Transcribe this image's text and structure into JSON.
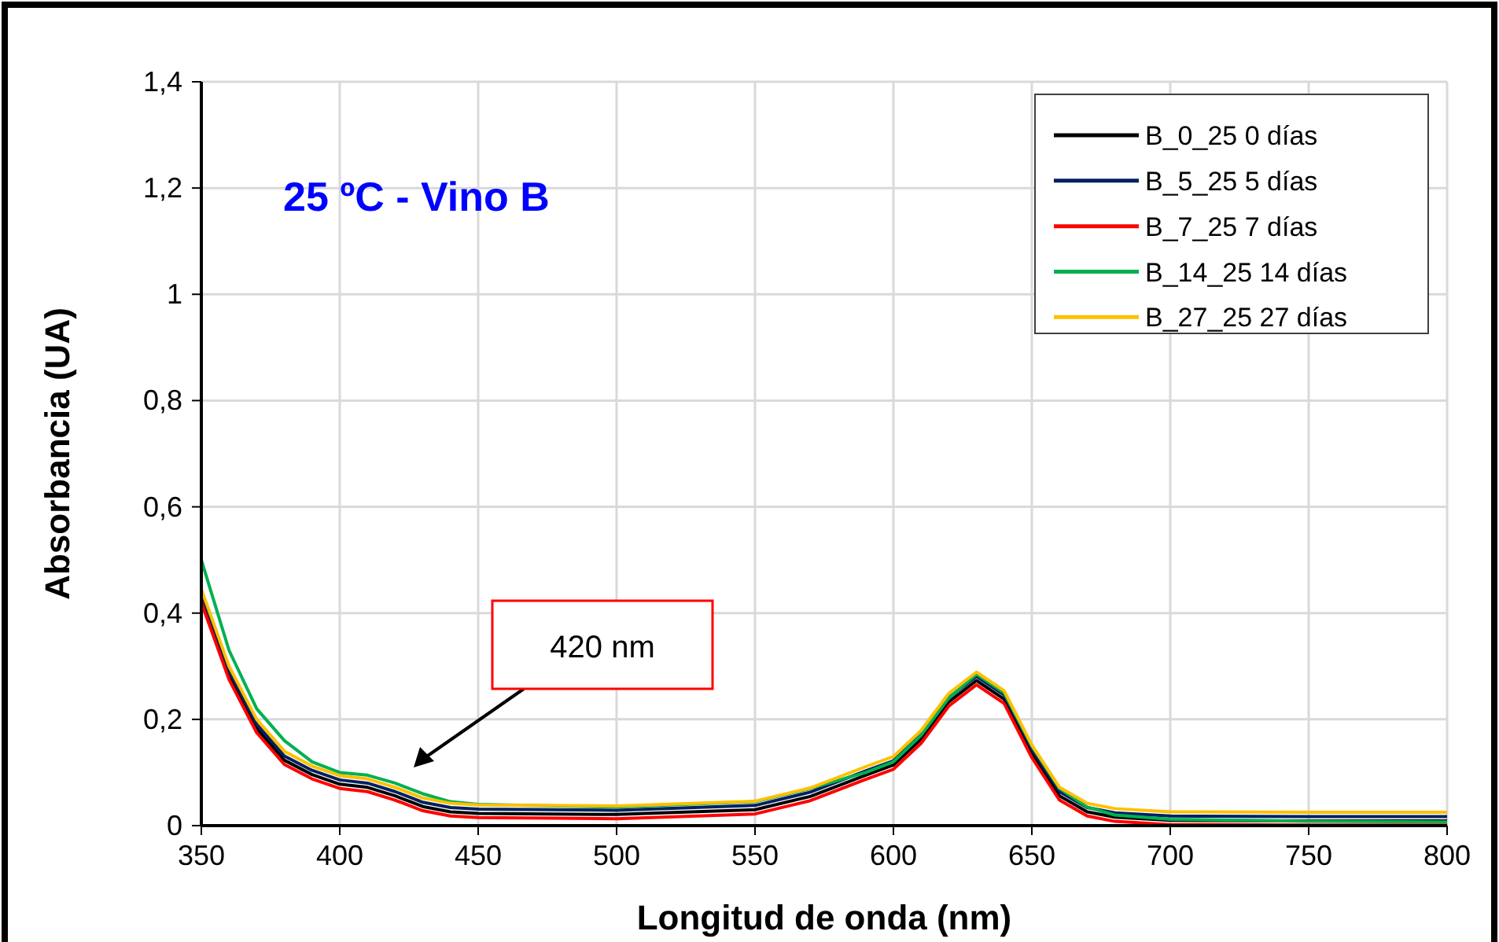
{
  "chart_data": {
    "type": "line",
    "title": "25 ºC - Vino B",
    "xlabel": "Longitud de onda (nm)",
    "ylabel": "Absorbancia (UA)",
    "x": [
      350,
      360,
      370,
      380,
      390,
      400,
      410,
      420,
      430,
      440,
      450,
      500,
      550,
      570,
      590,
      600,
      610,
      620,
      630,
      640,
      650,
      660,
      670,
      680,
      700,
      750,
      800
    ],
    "series": [
      {
        "name": "B_0_25 0 días",
        "color": "#000000",
        "values": [
          0.428,
          0.283,
          0.183,
          0.123,
          0.096,
          0.078,
          0.072,
          0.056,
          0.036,
          0.026,
          0.023,
          0.021,
          0.03,
          0.055,
          0.095,
          0.114,
          0.163,
          0.233,
          0.273,
          0.238,
          0.136,
          0.056,
          0.026,
          0.016,
          0.01,
          0.009,
          0.009
        ]
      },
      {
        "name": "B_5_25 5 días",
        "color": "#002060",
        "values": [
          0.436,
          0.291,
          0.191,
          0.131,
          0.104,
          0.086,
          0.08,
          0.064,
          0.044,
          0.034,
          0.031,
          0.029,
          0.038,
          0.063,
          0.103,
          0.122,
          0.171,
          0.241,
          0.281,
          0.246,
          0.144,
          0.064,
          0.034,
          0.024,
          0.018,
          0.017,
          0.017
        ]
      },
      {
        "name": "B_7_25 7 días",
        "color": "#ff0000",
        "values": [
          0.42,
          0.275,
          0.175,
          0.115,
          0.088,
          0.07,
          0.064,
          0.048,
          0.028,
          0.018,
          0.015,
          0.013,
          0.022,
          0.047,
          0.087,
          0.106,
          0.155,
          0.225,
          0.265,
          0.23,
          0.128,
          0.048,
          0.018,
          0.008,
          0.002,
          0.001,
          0.001
        ]
      },
      {
        "name": "B_14_25 14 días",
        "color": "#00b050",
        "values": [
          0.5,
          0.33,
          0.22,
          0.16,
          0.12,
          0.1,
          0.095,
          0.08,
          0.06,
          0.045,
          0.04,
          0.035,
          0.045,
          0.07,
          0.1,
          0.12,
          0.17,
          0.24,
          0.285,
          0.25,
          0.15,
          0.07,
          0.035,
          0.02,
          0.012,
          0.008,
          0.007
        ]
      },
      {
        "name": "B_27_25 27 días",
        "color": "#ffc000",
        "values": [
          0.445,
          0.3,
          0.2,
          0.14,
          0.112,
          0.094,
          0.088,
          0.072,
          0.052,
          0.042,
          0.039,
          0.037,
          0.046,
          0.071,
          0.111,
          0.13,
          0.179,
          0.249,
          0.289,
          0.254,
          0.152,
          0.072,
          0.042,
          0.032,
          0.026,
          0.025,
          0.025
        ]
      }
    ],
    "xlim": [
      350,
      800
    ],
    "xticks": [
      350,
      400,
      450,
      500,
      550,
      600,
      650,
      700,
      750,
      800
    ],
    "ylim": [
      0,
      1.4
    ],
    "yticks": [
      0,
      {
        "value": 0.2,
        "label": "0,2"
      },
      {
        "value": 0.4,
        "label": "0,4"
      },
      {
        "value": 0.6,
        "label": "0,6"
      },
      {
        "value": 0.8,
        "label": "0,8"
      },
      1,
      {
        "value": 1.2,
        "label": "1,2"
      },
      {
        "value": 1.4,
        "label": "1,4"
      }
    ],
    "grid": true,
    "legend": "top right",
    "line_style": "solid",
    "marker": "none",
    "annotations": [
      "420 nm"
    ]
  }
}
